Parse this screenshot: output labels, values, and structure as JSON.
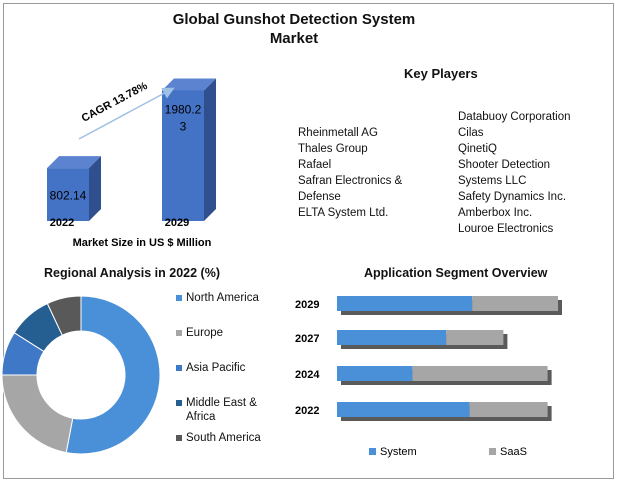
{
  "title": "Global Gunshot Detection System Market",
  "market_size_chart": {
    "type": "bar",
    "categories": [
      "2022",
      "2029"
    ],
    "values": [
      802.14,
      1980.23
    ],
    "value_labels": [
      "802.14",
      "1980.2\n3"
    ],
    "xlabel": "Market Size in US $ Million",
    "cagr_label": "CAGR 13.78%",
    "colors": {
      "front": "#4472c4",
      "side": "#2f4f8f",
      "top": "#5b83cf"
    }
  },
  "key_players": {
    "title": "Key Players",
    "left": [
      "Rheinmetall AG",
      "Thales Group",
      "Rafael",
      "Safran Electronics &",
      "Defense",
      "ELTA System Ltd."
    ],
    "right": [
      "Databuoy Corporation",
      "Cilas",
      "QinetiQ",
      "Shooter Detection",
      "Systems LLC",
      "Safety Dynamics Inc.",
      "Amberbox Inc.",
      "Louroe Electronics"
    ]
  },
  "regional": {
    "title": "Regional Analysis in 2022 (%)",
    "legend": [
      {
        "label": "North America",
        "color": "#4a90d9"
      },
      {
        "label": "Europe",
        "color": "#a6a6a6"
      },
      {
        "label": "Asia Pacific",
        "color": "#3f78c7"
      },
      {
        "label": "Middle East &\nAfrica",
        "color": "#255e91"
      },
      {
        "label": "South America",
        "color": "#595959"
      }
    ]
  },
  "chart_data": [
    {
      "type": "pie",
      "title": "Regional Analysis in 2022 (%)",
      "labels": [
        "North America",
        "Europe",
        "Asia Pacific",
        "Middle East & Africa",
        "South America"
      ],
      "values": [
        53,
        22,
        9,
        9,
        7
      ],
      "colors": [
        "#4a90d9",
        "#a6a6a6",
        "#3f78c7",
        "#255e91",
        "#595959"
      ],
      "legend_position": "right"
    },
    {
      "type": "bar",
      "orientation": "horizontal",
      "stacked": true,
      "title": "Application Segment Overview",
      "categories": [
        "2029",
        "2027",
        "2024",
        "2022"
      ],
      "series": [
        {
          "name": "System",
          "values": [
            52,
            42,
            29,
            51
          ],
          "color": "#4a90d9"
        },
        {
          "name": "SaaS",
          "values": [
            33,
            22,
            52,
            30
          ],
          "color": "#a6a6a6"
        }
      ],
      "legend_position": "bottom"
    }
  ]
}
